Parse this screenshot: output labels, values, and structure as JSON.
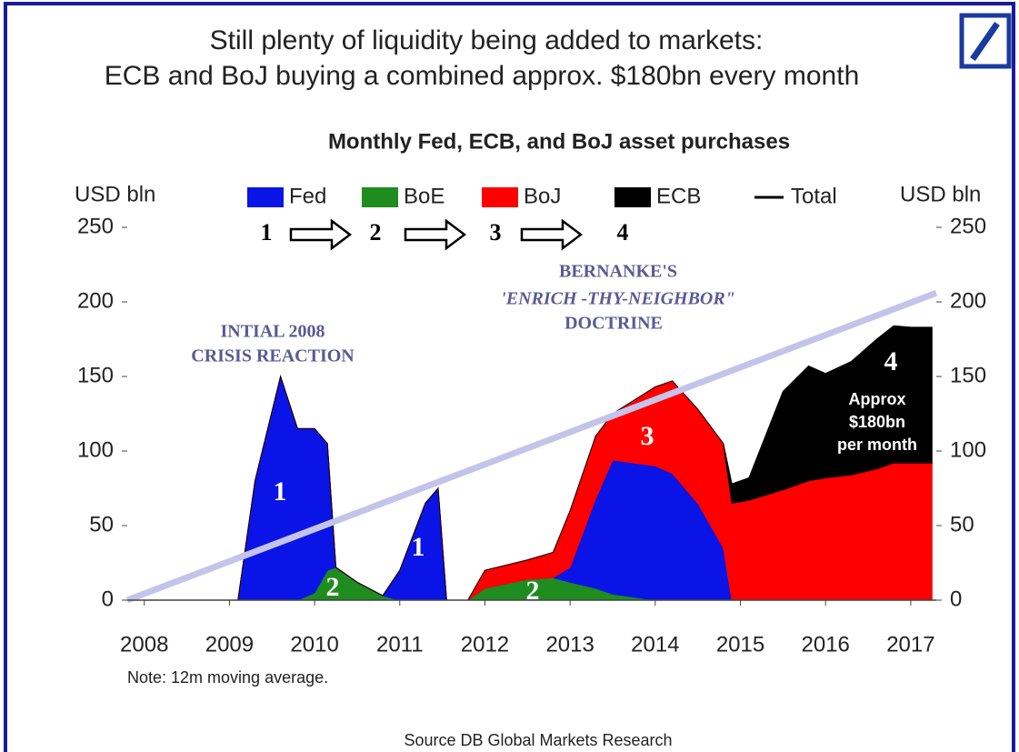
{
  "chart_data": {
    "type": "stacked_area",
    "title": [
      "Still plenty of liquidity being added to markets:",
      "ECB and BoJ buying a combined approx. $180bn every month"
    ],
    "subtitle": "Monthly Fed, ECB, and BoJ asset purchases",
    "ylabel": "USD bln",
    "y2label": "USD bln",
    "x": [
      2008,
      2009,
      2009.1,
      2009.3,
      2009.6,
      2009.8,
      2010,
      2010.15,
      2010.25,
      2010.5,
      2010.8,
      2011,
      2011.3,
      2011.45,
      2011.55,
      2011.8,
      2012,
      2012.5,
      2012.8,
      2013,
      2013.3,
      2013.5,
      2014,
      2014.2,
      2014.5,
      2014.8,
      2014.9,
      2015.1,
      2015.5,
      2015.8,
      2016,
      2016.3,
      2016.6,
      2016.8,
      2017,
      2017.25
    ],
    "series": [
      {
        "name": "Fed",
        "color": "#0a14e6",
        "values": [
          0,
          0,
          0,
          80,
          150,
          115,
          110,
          85,
          0,
          0,
          0,
          20,
          65,
          75,
          0,
          0,
          0,
          0,
          0,
          10,
          60,
          90,
          90,
          85,
          65,
          35,
          0,
          0,
          0,
          0,
          0,
          0,
          0,
          0,
          0,
          0
        ]
      },
      {
        "name": "BoE",
        "color": "#1e8c1e",
        "values": [
          0,
          0,
          0,
          0,
          0,
          0,
          5,
          20,
          22,
          12,
          3,
          0,
          0,
          0,
          0,
          0,
          8,
          14,
          15,
          12,
          8,
          4,
          0,
          0,
          0,
          0,
          0,
          0,
          0,
          0,
          0,
          0,
          0,
          0,
          0,
          0
        ]
      },
      {
        "name": "BoJ",
        "color": "#ff0000",
        "values": [
          0,
          0,
          0,
          0,
          0,
          0,
          0,
          0,
          0,
          0,
          0,
          0,
          0,
          0,
          0,
          0,
          12,
          13,
          17,
          38,
          42,
          31,
          53,
          62,
          63,
          70,
          65,
          67,
          74,
          80,
          82,
          84,
          88,
          92,
          92,
          92
        ]
      },
      {
        "name": "ECB",
        "color": "#000000",
        "values": [
          0,
          0,
          0,
          0,
          0,
          0,
          0,
          0,
          0,
          0,
          0,
          0,
          0,
          0,
          0,
          0,
          0,
          0,
          0,
          0,
          0,
          0,
          0,
          0,
          0,
          0,
          13,
          15,
          66,
          77,
          70,
          76,
          87,
          92,
          91,
          91
        ]
      },
      {
        "name": "Total",
        "color": "#c4c4ea",
        "x": [
          2007.8,
          2017.3
        ],
        "values": [
          0,
          206
        ]
      }
    ],
    "xlim": [
      2007.8,
      2017.3
    ],
    "xticks": [
      2008,
      2009,
      2010,
      2011,
      2012,
      2013,
      2014,
      2015,
      2016,
      2017
    ],
    "ylim": [
      0,
      250
    ],
    "yticks": [
      0,
      50,
      100,
      150,
      200,
      250
    ],
    "y2lim": [
      0,
      250
    ],
    "y2ticks": [
      0,
      50,
      100,
      150,
      200,
      250
    ],
    "steps": [
      "1",
      "2",
      "3",
      "4"
    ],
    "annotations": [
      "INTIAL 2008",
      "CRISIS REACTION",
      "BERNANKE'S",
      "'ENRICH -THY-NEIGHBOR\"",
      "DOCTRINE"
    ],
    "area_labels": [
      "1",
      "1",
      "2",
      "2",
      "3",
      "4",
      "Approx",
      "$180bn",
      "per month"
    ],
    "note": "Note: 12m moving average.",
    "source": "Source   DB Global Markets Research"
  }
}
